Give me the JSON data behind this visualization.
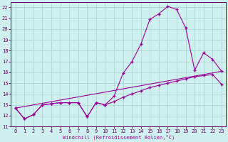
{
  "xlabel": "Windchill (Refroidissement éolien,°C)",
  "xlim": [
    -0.5,
    23.5
  ],
  "ylim": [
    11,
    22.5
  ],
  "yticks": [
    11,
    12,
    13,
    14,
    15,
    16,
    17,
    18,
    19,
    20,
    21,
    22
  ],
  "xticks": [
    0,
    1,
    2,
    3,
    4,
    5,
    6,
    7,
    8,
    9,
    10,
    11,
    12,
    13,
    14,
    15,
    16,
    17,
    18,
    19,
    20,
    21,
    22,
    23
  ],
  "bg_color": "#cef0ee",
  "grid_color": "#b0d8d5",
  "line_color": "#990099",
  "line1_x": [
    0,
    1,
    2,
    3,
    4,
    5,
    6,
    7,
    8,
    9,
    10,
    11,
    12,
    13,
    14,
    15,
    16,
    17,
    18,
    19,
    20,
    21,
    22,
    23
  ],
  "line1_y": [
    12.7,
    11.7,
    12.1,
    13.0,
    13.1,
    13.2,
    13.2,
    13.2,
    11.9,
    13.2,
    13.0,
    13.3,
    13.7,
    14.0,
    14.3,
    14.6,
    14.8,
    15.0,
    15.2,
    15.4,
    15.6,
    15.7,
    15.8,
    14.9
  ],
  "line2_x": [
    0,
    1,
    2,
    3,
    4,
    5,
    6,
    7,
    8,
    9,
    10,
    11,
    12,
    13,
    14,
    15,
    16,
    17,
    18,
    19,
    20,
    21,
    22,
    23
  ],
  "line2_y": [
    12.7,
    11.7,
    12.1,
    13.0,
    13.1,
    13.2,
    13.2,
    13.2,
    11.9,
    13.2,
    13.0,
    13.8,
    15.9,
    17.0,
    18.6,
    20.9,
    21.4,
    22.1,
    21.8,
    20.1,
    16.2,
    17.8,
    17.2,
    16.1
  ],
  "line3_x": [
    0,
    23
  ],
  "line3_y": [
    12.7,
    16.1
  ]
}
